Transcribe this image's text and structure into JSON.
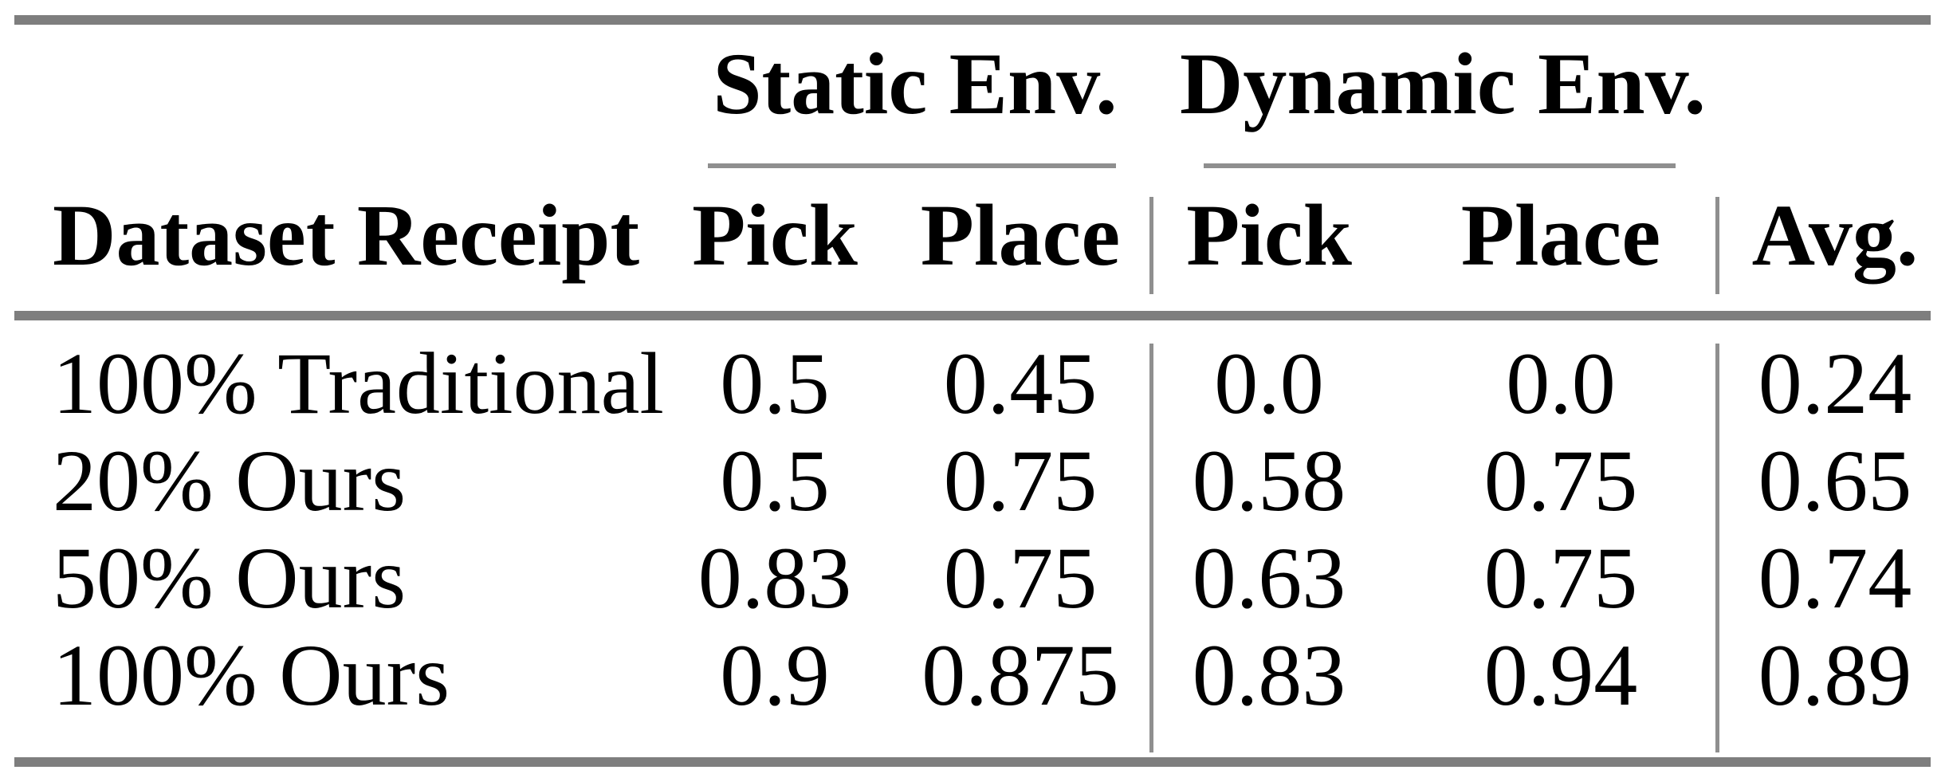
{
  "table": {
    "group_headers": {
      "static": "Static Env.",
      "dynamic": "Dynamic Env."
    },
    "column_headers": {
      "label": "Dataset Receipt",
      "static_pick": "Pick",
      "static_place": "Place",
      "dynamic_pick": "Pick",
      "dynamic_place": "Place",
      "avg": "Avg."
    },
    "rows": [
      {
        "label": "100% Traditional",
        "static_pick": "0.5",
        "static_place": "0.45",
        "dynamic_pick": "0.0",
        "dynamic_place": "0.0",
        "avg": "0.24"
      },
      {
        "label": "20% Ours",
        "static_pick": "0.5",
        "static_place": "0.75",
        "dynamic_pick": "0.58",
        "dynamic_place": "0.75",
        "avg": "0.65"
      },
      {
        "label": "50% Ours",
        "static_pick": "0.83",
        "static_place": "0.75",
        "dynamic_pick": "0.63",
        "dynamic_place": "0.75",
        "avg": "0.74"
      },
      {
        "label": "100% Ours",
        "static_pick": "0.9",
        "static_place": "0.875",
        "dynamic_pick": "0.83",
        "dynamic_place": "0.94",
        "avg": "0.89"
      }
    ],
    "colors": {
      "rule_heavy": "#7e7e7e",
      "rule_light": "#8f8f8f",
      "text": "#000000",
      "background": "#ffffff"
    }
  }
}
